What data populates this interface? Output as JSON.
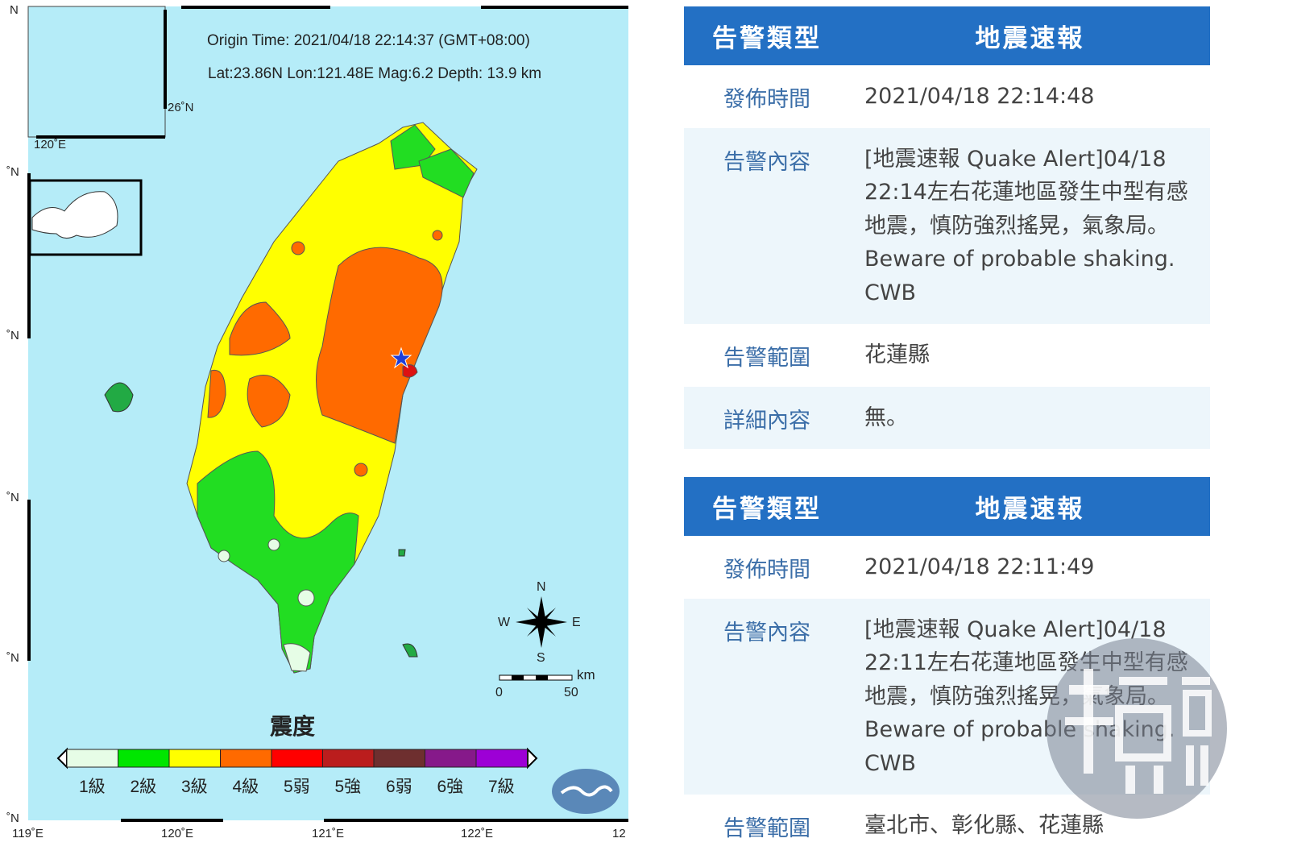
{
  "map": {
    "origin_line": "Origin Time: 2021/04/18  22:14:37  (GMT+08:00)",
    "params_line": "Lat:23.86N  Lon:121.48E  Mag:6.2  Depth: 13.9 km",
    "inset_lat": "26˚N",
    "inset_lon": "120˚E",
    "lat_labels": [
      "N",
      "˚N",
      "˚N",
      "˚N",
      "˚N",
      "˚N"
    ],
    "lon_labels": [
      "119˚E",
      "120˚E",
      "121˚E",
      "122˚E",
      "12"
    ],
    "compass": {
      "n": "N",
      "s": "S",
      "e": "E",
      "w": "W"
    },
    "scale": {
      "unit": "km",
      "start": "0",
      "end": "50"
    },
    "legend_title": "震度",
    "legend": [
      {
        "label": "1級",
        "color": "#e6fde6"
      },
      {
        "label": "2級",
        "color": "#00e600"
      },
      {
        "label": "3級",
        "color": "#ffff00"
      },
      {
        "label": "4級",
        "color": "#ff6a00"
      },
      {
        "label": "5弱",
        "color": "#ff0000"
      },
      {
        "label": "5強",
        "color": "#bb1d1d"
      },
      {
        "label": "6弱",
        "color": "#6e2f2f"
      },
      {
        "label": "6強",
        "color": "#86198a"
      },
      {
        "label": "7級",
        "color": "#9d00d6"
      }
    ],
    "epicenter_icon": "star-icon",
    "logo": "cwb-logo"
  },
  "alerts": [
    {
      "type_label": "告警類型",
      "type_value": "地震速報",
      "rows": [
        {
          "label": "發佈時間",
          "value": "2021/04/18 22:14:48"
        },
        {
          "label": "告警內容",
          "value": "[地震速報 Quake Alert]04/18 22:14左右花蓮地區發生中型有感地震，慎防強烈搖晃，氣象局。Beware of probable shaking. CWB"
        },
        {
          "label": "告警範圍",
          "value": "花蓮縣"
        },
        {
          "label": "詳細內容",
          "value": "無。"
        }
      ]
    },
    {
      "type_label": "告警類型",
      "type_value": "地震速報",
      "rows": [
        {
          "label": "發佈時間",
          "value": "2021/04/18 22:11:49"
        },
        {
          "label": "告警內容",
          "value": "[地震速報 Quake Alert]04/18 22:11左右花蓮地區發生中型有感地震，慎防強烈搖晃，氣象局。Beware of probable shaking. CWB"
        },
        {
          "label": "告警範圍",
          "value": "臺北市、彰化縣、花蓮縣"
        }
      ]
    }
  ],
  "watermark": {
    "main": "鏡",
    "sub": "週刊"
  },
  "colors": {
    "header": "#2370c4",
    "sea": "#b5ecf8",
    "label": "#3b6ea8"
  }
}
